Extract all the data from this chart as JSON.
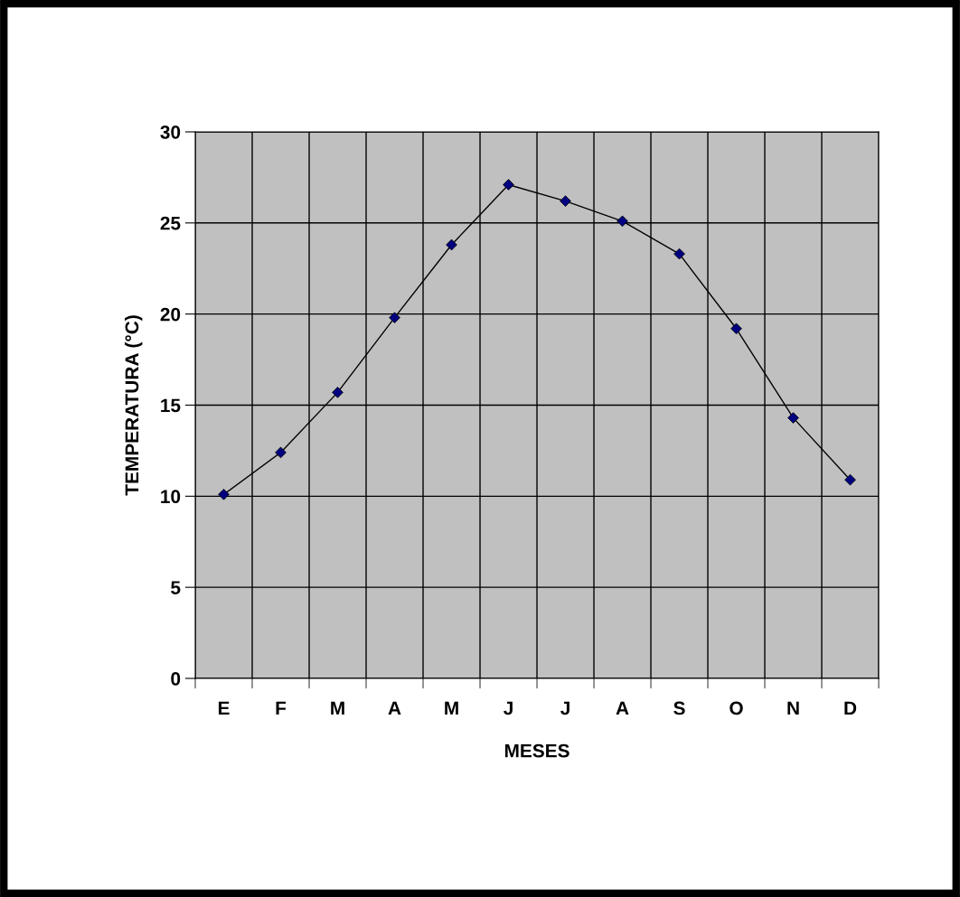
{
  "chart_data": {
    "type": "line",
    "xlabel": "MESES",
    "ylabel": "TEMPERATURA (°C)",
    "categories": [
      "E",
      "F",
      "M",
      "A",
      "M",
      "J",
      "J",
      "A",
      "S",
      "O",
      "N",
      "D"
    ],
    "series": [
      {
        "color": "#000080",
        "values": [
          10.1,
          12.4,
          15.7,
          19.8,
          23.8,
          27.1,
          26.2,
          25.1,
          23.3,
          19.2,
          14.3,
          10.9
        ]
      }
    ],
    "ylim": [
      0,
      30
    ],
    "yticks": [
      0,
      5,
      10,
      15,
      20,
      25,
      30
    ],
    "grid": true,
    "marker": "diamond",
    "line_style": "solid"
  }
}
